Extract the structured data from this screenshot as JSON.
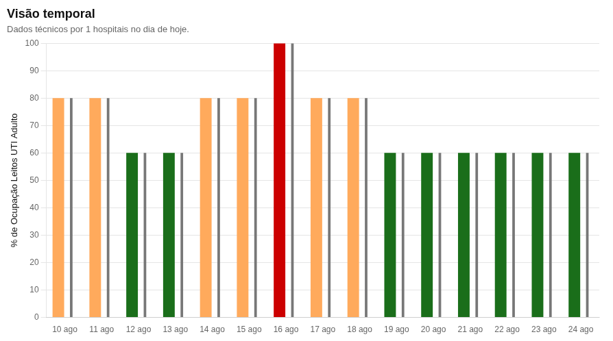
{
  "chart_data": {
    "type": "bar",
    "title": "Visão temporal",
    "subtitle": "Dados técnicos por 1 hospitais no dia de hoje.",
    "ylabel": "% de Ocupação Leitos UTI Adulto",
    "categories": [
      "10 ago",
      "11 ago",
      "12 ago",
      "13 ago",
      "14 ago",
      "15 ago",
      "16 ago",
      "17 ago",
      "18 ago",
      "19 ago",
      "20 ago",
      "21 ago",
      "22 ago",
      "23 ago",
      "24 ago"
    ],
    "series": [
      {
        "values": [
          80,
          80,
          60,
          60,
          80,
          80,
          100,
          80,
          80,
          60,
          60,
          60,
          60,
          60,
          60
        ],
        "colors": [
          "#FFAA5C",
          "#FFAA5C",
          "#1a6e1a",
          "#1a6e1a",
          "#FFAA5C",
          "#FFAA5C",
          "#cc0000",
          "#FFAA5C",
          "#FFAA5C",
          "#1a6e1a",
          "#1a6e1a",
          "#1a6e1a",
          "#1a6e1a",
          "#1a6e1a",
          "#1a6e1a"
        ]
      },
      {
        "values": [
          80,
          80,
          60,
          60,
          80,
          80,
          100,
          80,
          80,
          60,
          60,
          60,
          60,
          60,
          60
        ],
        "color": "#777777"
      }
    ],
    "ylim": [
      0,
      100
    ],
    "yticks": [
      0,
      10,
      20,
      30,
      40,
      50,
      60,
      70,
      80,
      90,
      100
    ],
    "grid": true
  }
}
